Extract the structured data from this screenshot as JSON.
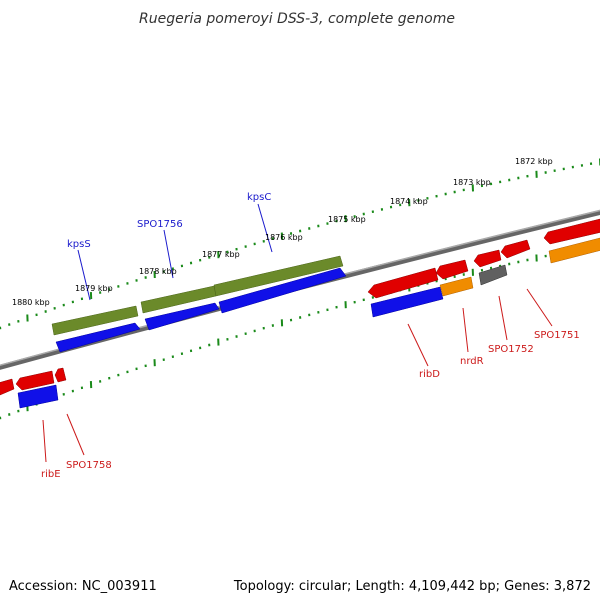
{
  "title": "Ruegeria pomeroyi DSS-3, complete genome",
  "accession": "Accession: NC_003911",
  "summary": "Topology: circular; Length: 4,109,442 bp; Genes: 3,872",
  "colors": {
    "backbone": "#808080",
    "tick": "#1a8a1a",
    "forward_label": "#1a1acc",
    "reverse_label": "#cc1a1a",
    "feature_red": "#e00000",
    "feature_blue": "#1010e8",
    "feature_olive": "#6b8a2a",
    "feature_orange": "#f08c00",
    "feature_gray": "#606060"
  },
  "ticks": [
    {
      "label": "1880 kbp"
    },
    {
      "label": "1879 kbp"
    },
    {
      "label": "1878 kbp"
    },
    {
      "label": "1877 kbp"
    },
    {
      "label": "1876 kbp"
    },
    {
      "label": "1875 kbp"
    },
    {
      "label": "1874 kbp"
    },
    {
      "label": "1873 kbp"
    },
    {
      "label": "1872 kbp"
    }
  ],
  "gene_labels": [
    {
      "text": "kpsS",
      "strand": "forward"
    },
    {
      "text": "SPO1756",
      "strand": "forward"
    },
    {
      "text": "kpsC",
      "strand": "forward"
    },
    {
      "text": "ribE",
      "strand": "reverse"
    },
    {
      "text": "SPO1758",
      "strand": "reverse"
    },
    {
      "text": "ribD",
      "strand": "reverse"
    },
    {
      "text": "nrdR",
      "strand": "reverse"
    },
    {
      "text": "SPO1752",
      "strand": "reverse"
    },
    {
      "text": "SPO1751",
      "strand": "reverse"
    }
  ]
}
